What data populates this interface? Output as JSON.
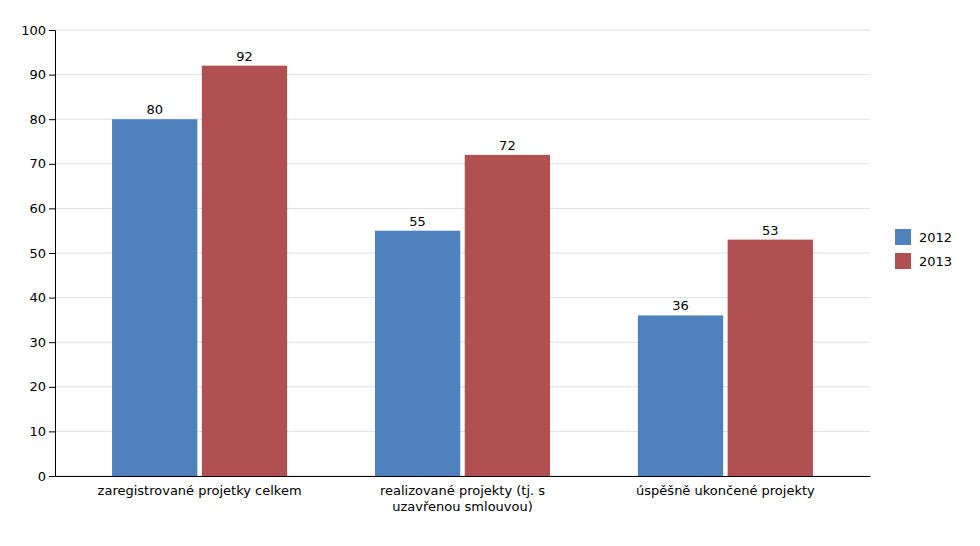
{
  "chart_data": {
    "type": "bar",
    "categories": [
      "zaregistrované projetky celkem",
      "realizované projekty (tj. s\nuzavřenou smlouvou)",
      "úspěšně ukončené projekty"
    ],
    "series": [
      {
        "name": "2012",
        "color": "#4f81bd",
        "values": [
          80,
          55,
          36
        ]
      },
      {
        "name": "2013",
        "color": "#b05050",
        "values": [
          92,
          72,
          53
        ]
      }
    ],
    "ylim": [
      0,
      100
    ],
    "yticks": [
      0,
      10,
      20,
      30,
      40,
      50,
      60,
      70,
      80,
      90,
      100
    ],
    "grid": true,
    "legend": "right",
    "data_labels": true
  }
}
